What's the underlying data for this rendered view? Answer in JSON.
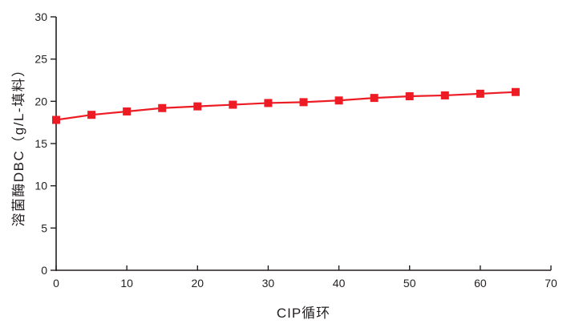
{
  "chart": {
    "title": "",
    "xlabel": "CIP循环",
    "ylabel": "溶菌酶DBC（g/L-填料）"
  },
  "chart_data": {
    "type": "line",
    "title": "",
    "xlabel": "CIP循环",
    "ylabel": "溶菌酶DBC（g/L-填料）",
    "x": [
      0,
      5,
      10,
      15,
      20,
      25,
      30,
      35,
      40,
      45,
      50,
      55,
      60,
      65
    ],
    "series": [
      {
        "name": "溶菌酶DBC",
        "values": [
          17.8,
          18.4,
          18.8,
          19.2,
          19.4,
          19.6,
          19.8,
          19.9,
          20.1,
          20.4,
          20.6,
          20.7,
          20.9,
          21.1
        ],
        "color": "#ED1C24",
        "marker": "square"
      }
    ],
    "xlim": [
      0,
      70
    ],
    "ylim": [
      0,
      30
    ],
    "xticks": [
      0,
      10,
      20,
      30,
      40,
      50,
      60,
      70
    ],
    "yticks": [
      0,
      5,
      10,
      15,
      20,
      25,
      30
    ],
    "grid": false,
    "legend": false,
    "axis_color": "#231F20",
    "tick_label_color": "#231F20"
  }
}
